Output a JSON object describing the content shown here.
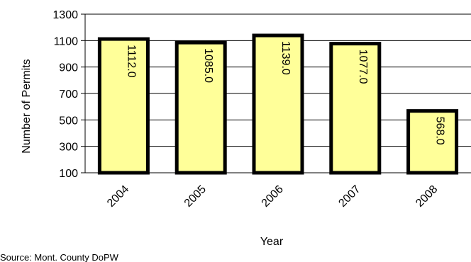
{
  "chart_data": {
    "type": "bar",
    "categories": [
      "2004",
      "2005",
      "2006",
      "2007",
      "2008"
    ],
    "values": [
      1112.0,
      1085.0,
      1139.0,
      1077.0,
      568.0
    ],
    "data_labels": [
      "1112.0",
      "1085.0",
      "1139.0",
      "1077.0",
      "568.0"
    ],
    "title": "",
    "xlabel": "Year",
    "ylabel": "Number of Permits",
    "ylim": [
      100,
      1300
    ],
    "yticks": [
      100,
      300,
      500,
      700,
      900,
      1100,
      1300
    ],
    "grid": true,
    "legend": "none",
    "colors": {
      "bar_fill": "#FFFF99",
      "bar_stroke": "#000000",
      "grid": "#000000"
    }
  },
  "source_note": "Source: Mont. County DoPW"
}
